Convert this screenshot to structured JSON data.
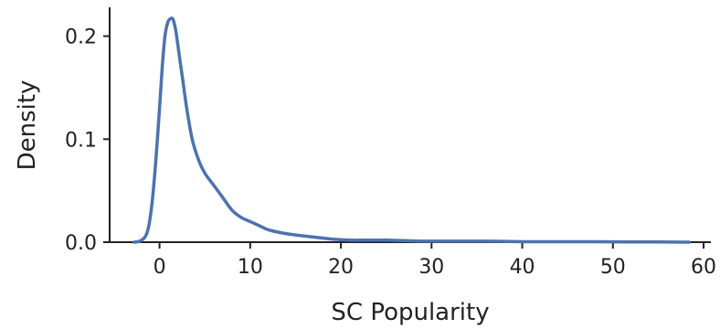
{
  "chart_data": {
    "type": "line",
    "title": "",
    "xlabel": "SC Popularity",
    "ylabel": "Density",
    "xlim": [
      -5.5,
      60.8
    ],
    "ylim": [
      0,
      0.228
    ],
    "xticks": [
      0,
      10,
      20,
      30,
      40,
      50,
      60
    ],
    "xtick_labels": [
      "0",
      "10",
      "20",
      "30",
      "40",
      "50",
      "60"
    ],
    "yticks": [
      0.0,
      0.1,
      0.2
    ],
    "ytick_labels": [
      "0.0",
      "0.1",
      "0.2"
    ],
    "grid": false,
    "legend": "none",
    "color": "#4c72b0",
    "series": [
      {
        "x": [
          -2.8,
          -2.2,
          -1.6,
          -1.2,
          -0.8,
          -0.4,
          0.0,
          0.3,
          0.6,
          0.9,
          1.2,
          1.5,
          1.8,
          2.2,
          2.6,
          3.0,
          3.6,
          4.3,
          5.0,
          6.0,
          7.0,
          8.0,
          9.0,
          10.0,
          11.0,
          12.0,
          13.5,
          15.0,
          17.0,
          19.0,
          21.0,
          23.0,
          25.0,
          27.0,
          29.0,
          32.0,
          36.0,
          40.0,
          45.0,
          50.0,
          55.0,
          58.4
        ],
        "y": [
          0.0,
          0.001,
          0.005,
          0.015,
          0.04,
          0.08,
          0.13,
          0.17,
          0.2,
          0.213,
          0.217,
          0.216,
          0.205,
          0.18,
          0.155,
          0.13,
          0.1,
          0.08,
          0.067,
          0.055,
          0.043,
          0.031,
          0.024,
          0.02,
          0.016,
          0.012,
          0.009,
          0.007,
          0.005,
          0.003,
          0.002,
          0.002,
          0.002,
          0.0015,
          0.001,
          0.001,
          0.001,
          0.0005,
          0.0005,
          0.0003,
          0.0002,
          0.0
        ]
      }
    ]
  }
}
